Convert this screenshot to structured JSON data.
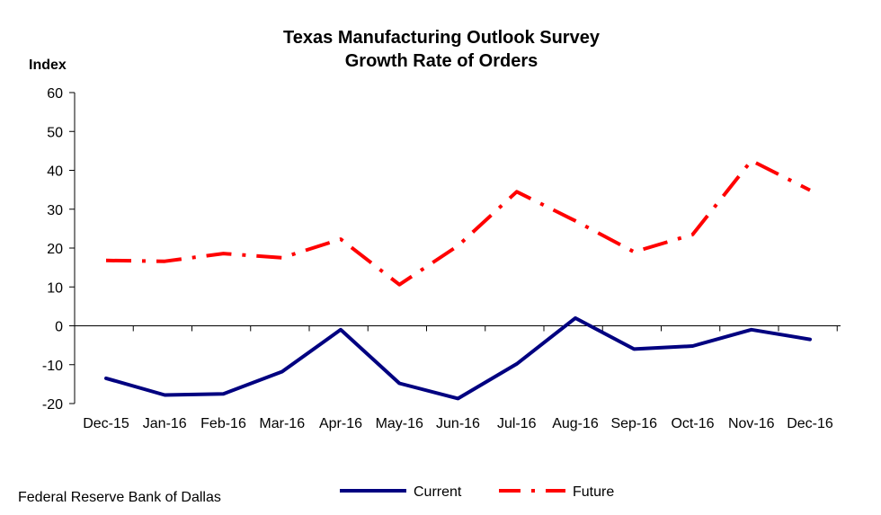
{
  "chart_data": {
    "type": "line",
    "title_lines": [
      "Texas Manufacturing Outlook Survey",
      "Growth Rate of Orders"
    ],
    "ylabel": "Index",
    "xlabel": "",
    "categories": [
      "Dec-15",
      "Jan-16",
      "Feb-16",
      "Mar-16",
      "Apr-16",
      "May-16",
      "Jun-16",
      "Jul-16",
      "Aug-16",
      "Sep-16",
      "Oct-16",
      "Nov-16",
      "Dec-16"
    ],
    "ylim": [
      -20,
      60
    ],
    "yticks": [
      -20,
      -10,
      0,
      10,
      20,
      30,
      40,
      50,
      60
    ],
    "grid": false,
    "legend_position": "bottom-center",
    "series": [
      {
        "name": "Current",
        "color": "#000080",
        "style": "solid",
        "values": [
          -13.5,
          -17.8,
          -17.5,
          -11.8,
          -1.0,
          -14.8,
          -18.7,
          -9.8,
          2.0,
          -6.0,
          -5.2,
          -1.0,
          -3.5
        ]
      },
      {
        "name": "Future",
        "color": "#ff0000",
        "style": "dash-dot",
        "values": [
          16.8,
          16.6,
          18.6,
          17.5,
          22.3,
          10.6,
          20.6,
          34.5,
          27.0,
          19.0,
          23.5,
          42.5,
          34.9
        ]
      }
    ]
  },
  "source_note": "Federal Reserve Bank of Dallas"
}
